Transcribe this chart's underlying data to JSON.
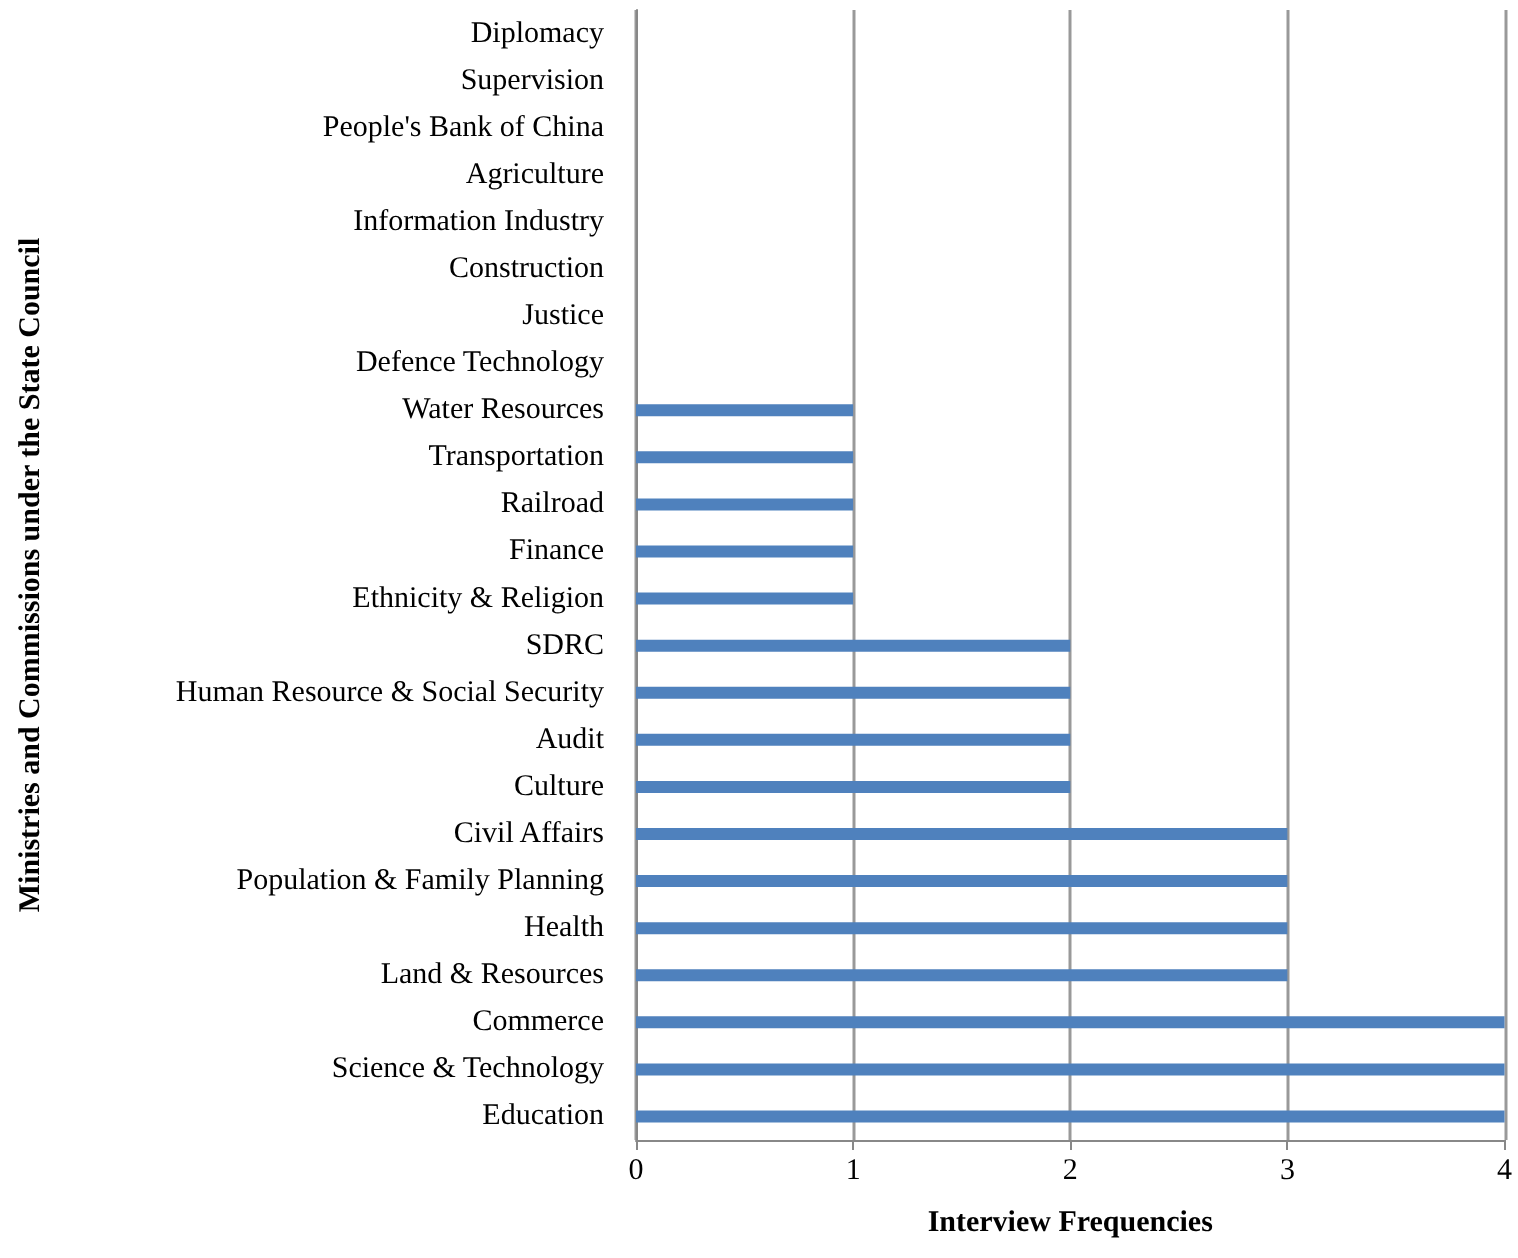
{
  "chart_data": {
    "type": "bar",
    "orientation": "horizontal",
    "xlabel": "Interview Frequencies",
    "ylabel": "Ministries and Commissions under the State Council",
    "categories": [
      "Diplomacy",
      "Supervision",
      "People's Bank of China",
      "Agriculture",
      "Information Industry",
      "Construction",
      "Justice",
      "Defence Technology",
      "Water Resources",
      "Transportation",
      "Railroad",
      "Finance",
      "Ethnicity & Religion",
      "SDRC",
      "Human Resource & Social Security",
      "Audit",
      "Culture",
      "Civil Affairs",
      "Population & Family Planning",
      "Health",
      "Land & Resources",
      "Commerce",
      "Science & Technology",
      "Education"
    ],
    "values": [
      0,
      0,
      0,
      0,
      0,
      0,
      0,
      0,
      1,
      1,
      1,
      1,
      1,
      2,
      2,
      2,
      2,
      3,
      3,
      3,
      3,
      4,
      4,
      4
    ],
    "color": "#4f81bd",
    "xlim": [
      0,
      4
    ],
    "xticks": [
      0,
      1,
      2,
      3,
      4
    ],
    "grid": "x"
  }
}
